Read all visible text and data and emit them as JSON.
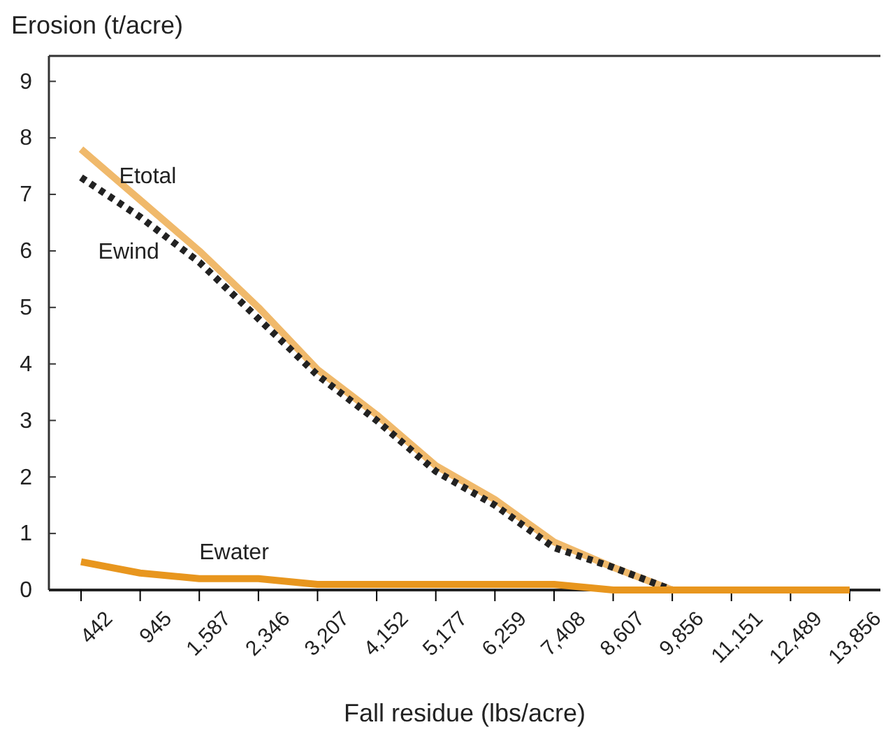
{
  "chart_data": {
    "type": "line",
    "ylabel": "Erosion (t/acre)",
    "xlabel": "Fall residue (lbs/acre)",
    "categories": [
      "442",
      "945",
      "1,587",
      "2,346",
      "3,207",
      "4,152",
      "5,177",
      "6,259",
      "7,408",
      "8,607",
      "9,856",
      "11,151",
      "12,489",
      "13,856"
    ],
    "ylim": [
      0,
      9.45
    ],
    "yticks": [
      0,
      1,
      2,
      3,
      4,
      5,
      6,
      7,
      8,
      9
    ],
    "grid": false,
    "legend": false,
    "marker": "none",
    "series": [
      {
        "name": "Etotal",
        "color": "#f0b96b",
        "line_style": "solid",
        "values": [
          7.8,
          6.9,
          6.0,
          5.0,
          3.9,
          3.1,
          2.2,
          1.6,
          0.85,
          0.4,
          0,
          0,
          0,
          0
        ]
      },
      {
        "name": "Ewind",
        "color": "#222222",
        "line_style": "dotted",
        "values": [
          7.3,
          6.6,
          5.8,
          4.8,
          3.8,
          3.0,
          2.1,
          1.5,
          0.75,
          0.4,
          0,
          0,
          0,
          0
        ]
      },
      {
        "name": "Ewater",
        "color": "#e8961e",
        "line_style": "solid",
        "values": [
          0.5,
          0.3,
          0.2,
          0.2,
          0.1,
          0.1,
          0.1,
          0.1,
          0.1,
          0,
          0,
          0,
          0,
          0
        ]
      }
    ]
  }
}
